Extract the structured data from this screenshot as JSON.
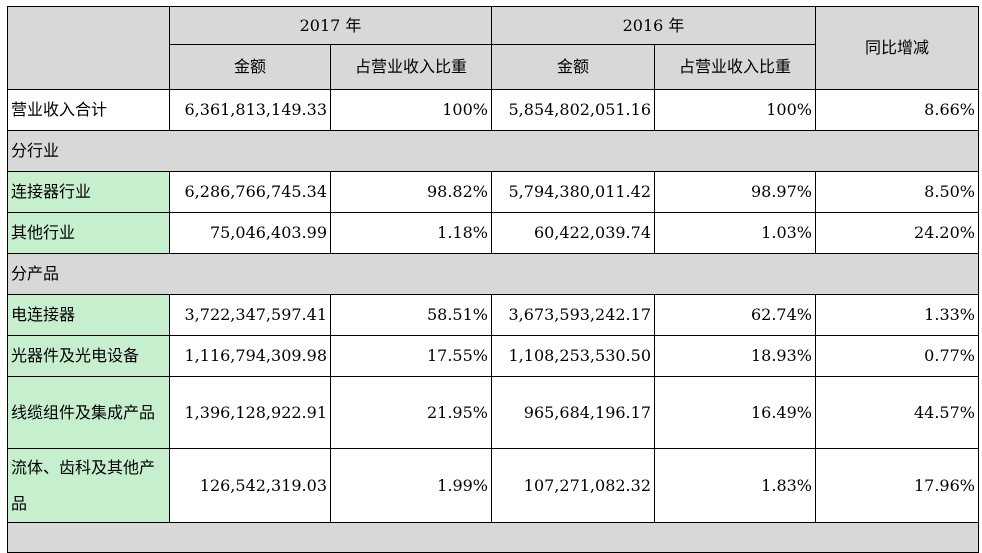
{
  "table": {
    "header": {
      "year_2017": "2017 年",
      "year_2016": "2016 年",
      "yoy": "同比增减",
      "amount_2017": "金额",
      "share_2017": "占营业收入比重",
      "amount_2016": "金额",
      "share_2016": "占营业收入比重"
    },
    "total": {
      "label": "营业收入合计",
      "amount_2017": "6,361,813,149.33",
      "share_2017": "100%",
      "amount_2016": "5,854,802,051.16",
      "share_2016": "100%",
      "yoy": "8.66%"
    },
    "section_industry": "分行业",
    "industry_rows": [
      {
        "label": "连接器行业",
        "amount_2017": "6,286,766,745.34",
        "share_2017": "98.82%",
        "amount_2016": "5,794,380,011.42",
        "share_2016": "98.97%",
        "yoy": "8.50%"
      },
      {
        "label": "其他行业",
        "amount_2017": "75,046,403.99",
        "share_2017": "1.18%",
        "amount_2016": "60,422,039.74",
        "share_2016": "1.03%",
        "yoy": "24.20%"
      }
    ],
    "section_product": "分产品",
    "product_rows": [
      {
        "label": "电连接器",
        "amount_2017": "3,722,347,597.41",
        "share_2017": "58.51%",
        "amount_2016": "3,673,593,242.17",
        "share_2016": "62.74%",
        "yoy": "1.33%"
      },
      {
        "label": "光器件及光电设备",
        "amount_2017": "1,116,794,309.98",
        "share_2017": "17.55%",
        "amount_2016": "1,108,253,530.50",
        "share_2016": "18.93%",
        "yoy": "0.77%"
      },
      {
        "label": "线缆组件及集成产品",
        "amount_2017": "1,396,128,922.91",
        "share_2017": "21.95%",
        "amount_2016": "965,684,196.17",
        "share_2016": "16.49%",
        "yoy": "44.57%"
      },
      {
        "label": "流体、齿科及其他产品",
        "amount_2017": "126,542,319.03",
        "share_2017": "1.99%",
        "amount_2016": "107,271,082.32",
        "share_2016": "1.83%",
        "yoy": "17.96%"
      }
    ]
  },
  "colors": {
    "header_bg": "#d8d8d8",
    "category_bg": "#c6efce",
    "border": "#000000"
  }
}
